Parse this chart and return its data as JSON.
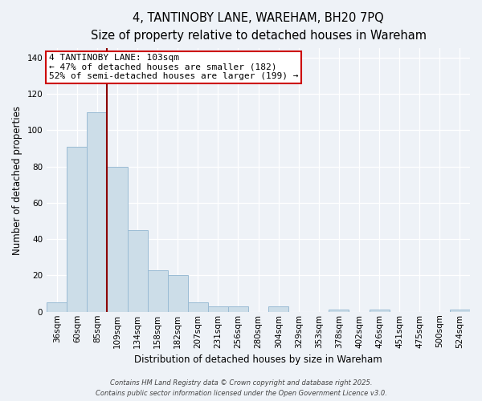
{
  "title": "4, TANTINOBY LANE, WAREHAM, BH20 7PQ",
  "subtitle": "Size of property relative to detached houses in Wareham",
  "xlabel": "Distribution of detached houses by size in Wareham",
  "ylabel": "Number of detached properties",
  "bar_values": [
    5,
    91,
    110,
    80,
    45,
    23,
    20,
    5,
    3,
    3,
    0,
    3,
    0,
    0,
    1,
    0,
    1,
    0,
    0,
    0,
    1
  ],
  "bar_labels": [
    "36sqm",
    "60sqm",
    "85sqm",
    "109sqm",
    "134sqm",
    "158sqm",
    "182sqm",
    "207sqm",
    "231sqm",
    "256sqm",
    "280sqm",
    "304sqm",
    "329sqm",
    "353sqm",
    "378sqm",
    "402sqm",
    "426sqm",
    "451sqm",
    "475sqm",
    "500sqm",
    "524sqm"
  ],
  "bar_color": "#ccdde8",
  "bar_edge_color": "#99bbd4",
  "bar_width": 1.0,
  "vline_color": "#8b0000",
  "vline_position": 3.0,
  "annotation_text_line1": "4 TANTINOBY LANE: 103sqm",
  "annotation_text_line2": "← 47% of detached houses are smaller (182)",
  "annotation_text_line3": "52% of semi-detached houses are larger (199) →",
  "annotation_box_color": "white",
  "annotation_box_edge": "#cc0000",
  "ylim": [
    0,
    145
  ],
  "yticks": [
    0,
    20,
    40,
    60,
    80,
    100,
    120,
    140
  ],
  "background_color": "#eef2f7",
  "plot_bg_color": "#eef2f7",
  "footer_line1": "Contains HM Land Registry data © Crown copyright and database right 2025.",
  "footer_line2": "Contains public sector information licensed under the Open Government Licence v3.0.",
  "title_fontsize": 10.5,
  "subtitle_fontsize": 9.5,
  "xlabel_fontsize": 8.5,
  "ylabel_fontsize": 8.5,
  "annotation_fontsize": 8,
  "footer_fontsize": 6,
  "tick_fontsize": 7.5
}
